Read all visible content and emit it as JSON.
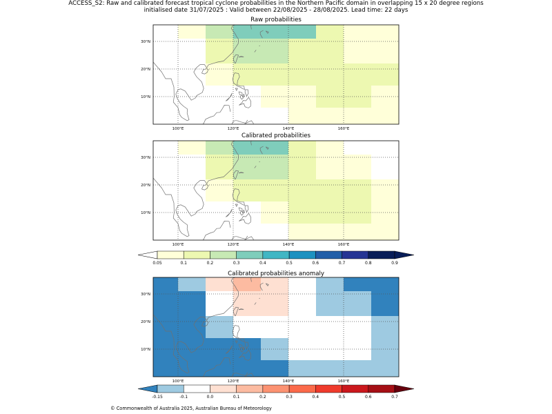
{
  "figure": {
    "title_line1": "ACCESS_S2: Raw and calibrated forecast tropical cyclone probabilities in the Northern Pacific domain in overlapping 15 x 20 degree regions",
    "title_line2": "initialised date 31/07/2025 :  Valid between 22/08/2025 - 28/08/2025. Lead time: 22 days",
    "credit": "© Commonwealth of Australia 2025, Australian Bureau of Meteorology"
  },
  "colors": {
    "prob_scale": [
      "#ffffd9",
      "#edf8b1",
      "#c7e9b4",
      "#7fcdbb",
      "#41b6c4",
      "#1d91c0",
      "#225ea8",
      "#253494",
      "#081d58"
    ],
    "prob_under": "#ffffff",
    "prob_over": "#081d58",
    "anom_scale": [
      "#9ecae1",
      "#ffffff",
      "#fee0d2",
      "#fcbba1",
      "#fc9272",
      "#fb6a4a",
      "#ef3b2c",
      "#cb181d",
      "#a50f15"
    ],
    "anom_under": "#3182bd",
    "anom_over": "#67000d",
    "coast": "#707070"
  },
  "chart_data": [
    {
      "type": "heatmap",
      "title": "Raw probabilities",
      "xlim": [
        91,
        180
      ],
      "ylim": [
        0,
        36
      ],
      "xticks": [
        100,
        120,
        140,
        160
      ],
      "xtick_labels": [
        "100°E",
        "120°E",
        "140°E",
        "160°E"
      ],
      "yticks": [
        10,
        20,
        30
      ],
      "ytick_labels": [
        "10°N",
        "20°N",
        "30°N"
      ],
      "grid": true,
      "cells": [
        {
          "x": [
            100,
            110
          ],
          "y": [
            31,
            36
          ],
          "value": 0.08
        },
        {
          "x": [
            110,
            120
          ],
          "y": [
            31,
            36
          ],
          "value": 0.25
        },
        {
          "x": [
            120,
            150
          ],
          "y": [
            31,
            36
          ],
          "value": 0.35
        },
        {
          "x": [
            150,
            160
          ],
          "y": [
            31,
            36
          ],
          "value": 0.15
        },
        {
          "x": [
            160,
            180
          ],
          "y": [
            31,
            36
          ],
          "value": 0.08
        },
        {
          "x": [
            110,
            120
          ],
          "y": [
            22,
            31
          ],
          "value": 0.15
        },
        {
          "x": [
            120,
            130
          ],
          "y": [
            22,
            31
          ],
          "value": 0.25
        },
        {
          "x": [
            130,
            140
          ],
          "y": [
            22,
            31
          ],
          "value": 0.25
        },
        {
          "x": [
            140,
            160
          ],
          "y": [
            22,
            31
          ],
          "value": 0.15
        },
        {
          "x": [
            160,
            180
          ],
          "y": [
            22,
            31
          ],
          "value": 0.08
        },
        {
          "x": [
            110,
            120
          ],
          "y": [
            14,
            22
          ],
          "value": 0.08
        },
        {
          "x": [
            120,
            180
          ],
          "y": [
            14,
            22
          ],
          "value": 0.15
        },
        {
          "x": [
            130,
            140
          ],
          "y": [
            6,
            14
          ],
          "value": 0.08
        },
        {
          "x": [
            140,
            150
          ],
          "y": [
            6,
            14
          ],
          "value": 0.08
        },
        {
          "x": [
            150,
            170
          ],
          "y": [
            6,
            14
          ],
          "value": 0.15
        },
        {
          "x": [
            170,
            180
          ],
          "y": [
            6,
            14
          ],
          "value": 0.08
        },
        {
          "x": [
            140,
            180
          ],
          "y": [
            0,
            6
          ],
          "value": 0.08
        }
      ]
    },
    {
      "type": "heatmap",
      "title": "Calibrated probabilities",
      "xlim": [
        91,
        180
      ],
      "ylim": [
        0,
        36
      ],
      "xticks": [
        100,
        120,
        140,
        160
      ],
      "xtick_labels": [
        "100°E",
        "120°E",
        "140°E",
        "160°E"
      ],
      "yticks": [
        10,
        20,
        30
      ],
      "ytick_labels": [
        "10°N",
        "20°N",
        "30°N"
      ],
      "grid": true,
      "cells": [
        {
          "x": [
            100,
            110
          ],
          "y": [
            31,
            36
          ],
          "value": 0.08
        },
        {
          "x": [
            110,
            120
          ],
          "y": [
            31,
            36
          ],
          "value": 0.25
        },
        {
          "x": [
            120,
            140
          ],
          "y": [
            31,
            36
          ],
          "value": 0.35
        },
        {
          "x": [
            140,
            150
          ],
          "y": [
            31,
            36
          ],
          "value": 0.15
        },
        {
          "x": [
            150,
            160
          ],
          "y": [
            31,
            36
          ],
          "value": 0.08
        },
        {
          "x": [
            110,
            120
          ],
          "y": [
            22,
            31
          ],
          "value": 0.15
        },
        {
          "x": [
            120,
            140
          ],
          "y": [
            22,
            31
          ],
          "value": 0.25
        },
        {
          "x": [
            140,
            150
          ],
          "y": [
            22,
            31
          ],
          "value": 0.15
        },
        {
          "x": [
            150,
            170
          ],
          "y": [
            22,
            31
          ],
          "value": 0.08
        },
        {
          "x": [
            110,
            120
          ],
          "y": [
            14,
            22
          ],
          "value": 0.08
        },
        {
          "x": [
            120,
            170
          ],
          "y": [
            14,
            22
          ],
          "value": 0.15
        },
        {
          "x": [
            170,
            180
          ],
          "y": [
            14,
            22
          ],
          "value": 0.08
        },
        {
          "x": [
            130,
            140
          ],
          "y": [
            6,
            14
          ],
          "value": 0.08
        },
        {
          "x": [
            140,
            170
          ],
          "y": [
            6,
            14
          ],
          "value": 0.15
        },
        {
          "x": [
            170,
            180
          ],
          "y": [
            6,
            14
          ],
          "value": 0.08
        },
        {
          "x": [
            140,
            180
          ],
          "y": [
            0,
            6
          ],
          "value": 0.08
        }
      ]
    },
    {
      "type": "heatmap",
      "title": "Calibrated probabilities anomaly",
      "xlim": [
        91,
        180
      ],
      "ylim": [
        0,
        36
      ],
      "xticks": [
        100,
        120,
        140,
        160
      ],
      "xtick_labels": [
        "100°E",
        "120°E",
        "140°E",
        "160°E"
      ],
      "yticks": [
        10,
        20,
        30
      ],
      "ytick_labels": [
        "10°N",
        "20°N",
        "30°N"
      ],
      "grid": true,
      "background_value": -0.2,
      "cells": [
        {
          "x": [
            100,
            110
          ],
          "y": [
            31,
            36
          ],
          "value": -0.12
        },
        {
          "x": [
            110,
            120
          ],
          "y": [
            31,
            36
          ],
          "value": 0.05
        },
        {
          "x": [
            120,
            130
          ],
          "y": [
            31,
            36
          ],
          "value": 0.15
        },
        {
          "x": [
            130,
            140
          ],
          "y": [
            31,
            36
          ],
          "value": 0.05
        },
        {
          "x": [
            140,
            150
          ],
          "y": [
            31,
            36
          ],
          "value": -0.05
        },
        {
          "x": [
            150,
            160
          ],
          "y": [
            31,
            36
          ],
          "value": -0.12
        },
        {
          "x": [
            110,
            120
          ],
          "y": [
            22,
            31
          ],
          "value": -0.05
        },
        {
          "x": [
            120,
            140
          ],
          "y": [
            22,
            31
          ],
          "value": 0.05
        },
        {
          "x": [
            140,
            150
          ],
          "y": [
            22,
            31
          ],
          "value": -0.05
        },
        {
          "x": [
            150,
            170
          ],
          "y": [
            22,
            31
          ],
          "value": -0.12
        },
        {
          "x": [
            110,
            120
          ],
          "y": [
            14,
            22
          ],
          "value": -0.12
        },
        {
          "x": [
            120,
            170
          ],
          "y": [
            14,
            22
          ],
          "value": -0.05
        },
        {
          "x": [
            170,
            180
          ],
          "y": [
            14,
            22
          ],
          "value": -0.12
        },
        {
          "x": [
            130,
            140
          ],
          "y": [
            6,
            14
          ],
          "value": -0.12
        },
        {
          "x": [
            140,
            170
          ],
          "y": [
            6,
            14
          ],
          "value": -0.05
        },
        {
          "x": [
            170,
            180
          ],
          "y": [
            6,
            14
          ],
          "value": -0.12
        },
        {
          "x": [
            140,
            180
          ],
          "y": [
            0,
            6
          ],
          "value": -0.12
        }
      ]
    }
  ],
  "colorbars": [
    {
      "ticks": [
        0.05,
        0.1,
        0.2,
        0.3,
        0.4,
        0.5,
        0.6,
        0.7,
        0.8,
        0.9
      ],
      "tick_labels": [
        "0.05",
        "0.1",
        "0.2",
        "0.3",
        "0.4",
        "0.5",
        "0.6",
        "0.7",
        "0.8",
        "0.9"
      ]
    },
    {
      "ticks": [
        -0.15,
        -0.1,
        0,
        0.1,
        0.2,
        0.3,
        0.4,
        0.5,
        0.6,
        0.7
      ],
      "tick_labels": [
        "-0.15",
        "-0.1",
        "0.0",
        "0.1",
        "0.2",
        "0.3",
        "0.4",
        "0.5",
        "0.6",
        "0.7"
      ]
    }
  ]
}
